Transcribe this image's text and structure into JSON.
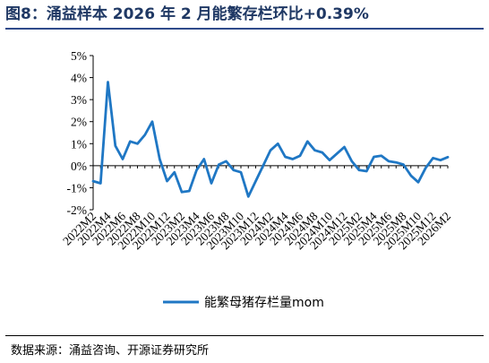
{
  "figure": {
    "title": "图8：涌益样本 2026 年 2 月能繁存栏环比+0.39%",
    "source": "数据来源：涌益咨询、开源证券研究所"
  },
  "chart_data": {
    "type": "line",
    "series": [
      {
        "name": "能繁母猪存栏量mom",
        "color": "#1f77c4",
        "values": [
          -0.7,
          -0.8,
          3.8,
          0.9,
          0.3,
          1.1,
          1.0,
          1.4,
          2.0,
          0.3,
          -0.7,
          -0.3,
          -1.2,
          -1.15,
          -0.2,
          0.3,
          -0.8,
          0.05,
          0.2,
          -0.2,
          -0.3,
          -1.4,
          -0.7,
          0.0,
          0.7,
          1.0,
          0.4,
          0.3,
          0.45,
          1.1,
          0.7,
          0.6,
          0.25,
          0.55,
          0.85,
          0.2,
          -0.2,
          -0.25,
          0.4,
          0.45,
          0.2,
          0.15,
          0.05,
          -0.45,
          -0.75,
          -0.1,
          0.35,
          0.25,
          0.39
        ]
      }
    ],
    "x_tick_labels": [
      "2022M2",
      "2022M4",
      "2022M6",
      "2022M8",
      "2022M10",
      "2022M12",
      "2023M2",
      "2023M4",
      "2023M6",
      "2023M8",
      "2023M10",
      "2023M12",
      "2024M2",
      "2024M4",
      "2024M6",
      "2024M8",
      "2024M10",
      "2024M12",
      "2025M2",
      "2025M4",
      "2025M6",
      "2025M8",
      "2025M10",
      "2025M12",
      "2026M2"
    ],
    "y_tick_labels": [
      "5%",
      "4%",
      "3%",
      "2%",
      "1%",
      "0%",
      "-1%",
      "-2%"
    ],
    "y_ticks": [
      5,
      4,
      3,
      2,
      1,
      0,
      -1,
      -2
    ],
    "ylim": [
      -2,
      5
    ],
    "grid": false,
    "legend_position": "bottom"
  }
}
